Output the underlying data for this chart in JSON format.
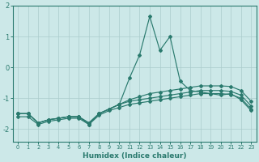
{
  "bg_color": "#cce8e8",
  "grid_color": "#aacccc",
  "line_color": "#2a7a6e",
  "x_values": [
    0,
    1,
    2,
    3,
    4,
    5,
    6,
    7,
    8,
    9,
    10,
    11,
    12,
    13,
    14,
    15,
    16,
    17,
    18,
    19,
    20,
    21,
    22,
    23
  ],
  "s1": [
    -1.5,
    -1.5,
    -1.8,
    -1.7,
    -1.65,
    -1.6,
    -1.6,
    -1.85,
    -1.5,
    -1.35,
    -1.2,
    -0.35,
    0.4,
    1.65,
    0.55,
    1.0,
    -0.45,
    -0.75,
    -0.8,
    -0.85,
    -0.9,
    -0.85,
    -1.05,
    -1.4
  ],
  "s2": [
    -1.5,
    -1.5,
    -1.8,
    -1.7,
    -1.65,
    -1.6,
    -1.6,
    -1.8,
    -1.5,
    -1.35,
    -1.2,
    -1.05,
    -0.95,
    -0.85,
    -0.8,
    -0.75,
    -0.7,
    -0.65,
    -0.6,
    -0.6,
    -0.6,
    -0.62,
    -0.75,
    -1.1
  ],
  "s3": [
    -1.5,
    -1.5,
    -1.8,
    -1.7,
    -1.65,
    -1.6,
    -1.6,
    -1.8,
    -1.5,
    -1.35,
    -1.2,
    -1.1,
    -1.05,
    -1.0,
    -0.95,
    -0.9,
    -0.85,
    -0.8,
    -0.75,
    -0.75,
    -0.75,
    -0.78,
    -0.9,
    -1.25
  ],
  "s4": [
    -1.6,
    -1.6,
    -1.85,
    -1.75,
    -1.7,
    -1.65,
    -1.65,
    -1.85,
    -1.55,
    -1.4,
    -1.3,
    -1.2,
    -1.15,
    -1.1,
    -1.05,
    -1.0,
    -0.95,
    -0.9,
    -0.85,
    -0.85,
    -0.85,
    -0.88,
    -1.0,
    -1.35
  ],
  "xlabel": "Humidex (Indice chaleur)",
  "xlim": [
    -0.5,
    23.5
  ],
  "ylim": [
    -2.4,
    2.0
  ],
  "yticks": [
    -2,
    -1,
    0,
    1,
    2
  ],
  "xticks": [
    0,
    1,
    2,
    3,
    4,
    5,
    6,
    7,
    8,
    9,
    10,
    11,
    12,
    13,
    14,
    15,
    16,
    17,
    18,
    19,
    20,
    21,
    22,
    23
  ]
}
